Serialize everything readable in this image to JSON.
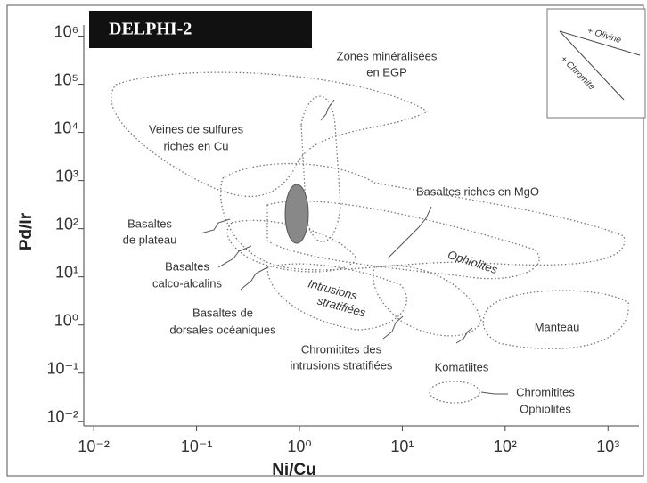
{
  "chart_data": {
    "type": "field-diagram",
    "title": "DELPHI-2",
    "x_label": "Ni/Cu",
    "y_label": "Pd/Ir",
    "xscale": "log",
    "yscale": "log",
    "xlim": [
      0.008,
      2000
    ],
    "ylim": [
      0.008,
      4000000
    ],
    "xticks": [
      {
        "value": 0.01,
        "label": "10⁻²"
      },
      {
        "value": 0.1,
        "label": "10⁻¹"
      },
      {
        "value": 1,
        "label": "10⁰"
      },
      {
        "value": 10,
        "label": "10¹"
      },
      {
        "value": 100,
        "label": "10²"
      },
      {
        "value": 1000,
        "label": "10³"
      }
    ],
    "yticks": [
      {
        "value": 0.01,
        "label": "10⁻²"
      },
      {
        "value": 0.1,
        "label": "10⁻¹"
      },
      {
        "value": 1,
        "label": "10⁰"
      },
      {
        "value": 10,
        "label": "10¹"
      },
      {
        "value": 100,
        "label": "10²"
      },
      {
        "value": 1000,
        "label": "10³"
      },
      {
        "value": 10000,
        "label": "10⁴"
      },
      {
        "value": 100000,
        "label": "10⁵"
      },
      {
        "value": 1000000,
        "label": "10⁶"
      }
    ],
    "annotations": [
      "Zones minéralisées",
      "en EGP",
      "Veines de sulfures",
      "riches en Cu",
      "Basaltes riches en MgO",
      "Basaltes",
      "de plateau",
      "Basaltes",
      "calco-alcalins",
      "Basaltes de",
      "dorsales océaniques",
      "Ophiolites",
      "Intrusions",
      "stratifiées",
      "Manteau",
      "Chromitites des",
      "intrusions stratifiées",
      "Komatiites",
      "Chromitites",
      "Ophiolites"
    ],
    "inset": {
      "arrows": [
        "+ Olivine",
        "+ Chromite"
      ]
    }
  }
}
